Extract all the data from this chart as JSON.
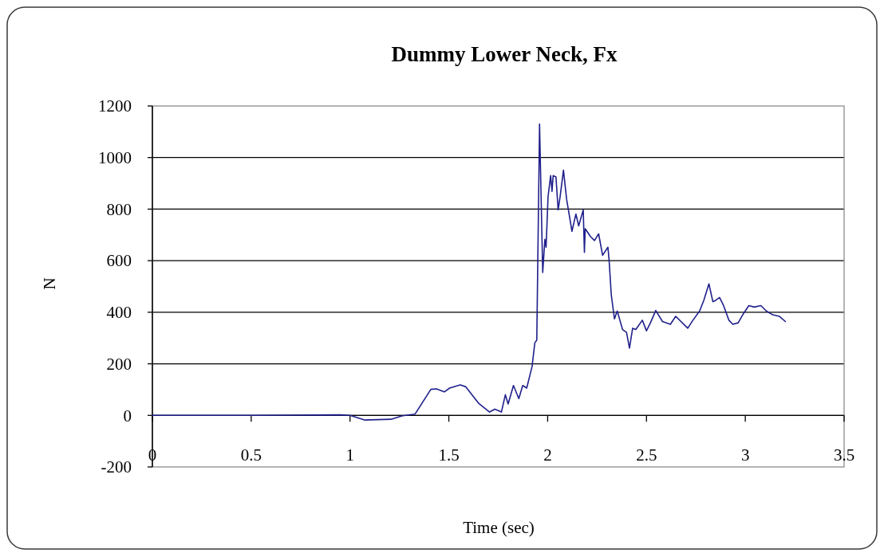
{
  "chart_data": {
    "type": "line",
    "title": "Dummy Lower Neck, Fx",
    "xlabel": "Time (sec)",
    "ylabel": "N",
    "x": [
      0,
      0.5,
      0.95,
      1.0,
      1.073,
      1.208,
      1.262,
      1.329,
      1.409,
      1.437,
      1.477,
      1.504,
      1.558,
      1.585,
      1.652,
      1.706,
      1.733,
      1.766,
      1.786,
      1.8,
      1.827,
      1.854,
      1.874,
      1.894,
      1.921,
      1.935,
      1.945,
      1.959,
      1.975,
      1.986,
      1.992,
      2.002,
      2.015,
      2.022,
      2.028,
      2.042,
      2.053,
      2.063,
      2.08,
      2.096,
      2.123,
      2.143,
      2.157,
      2.18,
      2.186,
      2.19,
      2.217,
      2.237,
      2.258,
      2.278,
      2.305,
      2.311,
      2.322,
      2.338,
      2.352,
      2.379,
      2.399,
      2.414,
      2.43,
      2.446,
      2.479,
      2.5,
      2.52,
      2.547,
      2.581,
      2.621,
      2.648,
      2.709,
      2.735,
      2.769,
      2.79,
      2.816,
      2.836,
      2.85,
      2.87,
      2.89,
      2.917,
      2.937,
      2.964,
      2.991,
      3.018,
      3.045,
      3.079,
      3.106,
      3.139,
      3.173,
      3.203
    ],
    "values": [
      0,
      0,
      2,
      0,
      -18,
      -15,
      -2,
      5,
      101,
      103,
      91,
      106,
      118,
      111,
      46,
      13,
      24,
      13,
      80,
      44,
      116,
      65,
      116,
      106,
      189,
      281,
      292,
      1130,
      554,
      683,
      652,
      848,
      930,
      869,
      930,
      925,
      797,
      848,
      951,
      838,
      714,
      781,
      735,
      797,
      632,
      724,
      693,
      678,
      704,
      621,
      652,
      601,
      467,
      374,
      405,
      333,
      322,
      261,
      338,
      333,
      369,
      328,
      359,
      407,
      364,
      353,
      384,
      338,
      369,
      405,
      446,
      510,
      441,
      446,
      457,
      426,
      369,
      353,
      359,
      395,
      426,
      420,
      426,
      405,
      390,
      384,
      364
    ],
    "color": "#20208c",
    "xlim": [
      0,
      3.5
    ],
    "ylim": [
      -200,
      1200
    ],
    "xticks": [
      0,
      0.5,
      1,
      1.5,
      2,
      2.5,
      3,
      3.5
    ],
    "yticks": [
      -200,
      0,
      200,
      400,
      600,
      800,
      1000,
      1200
    ],
    "grid": "y"
  }
}
